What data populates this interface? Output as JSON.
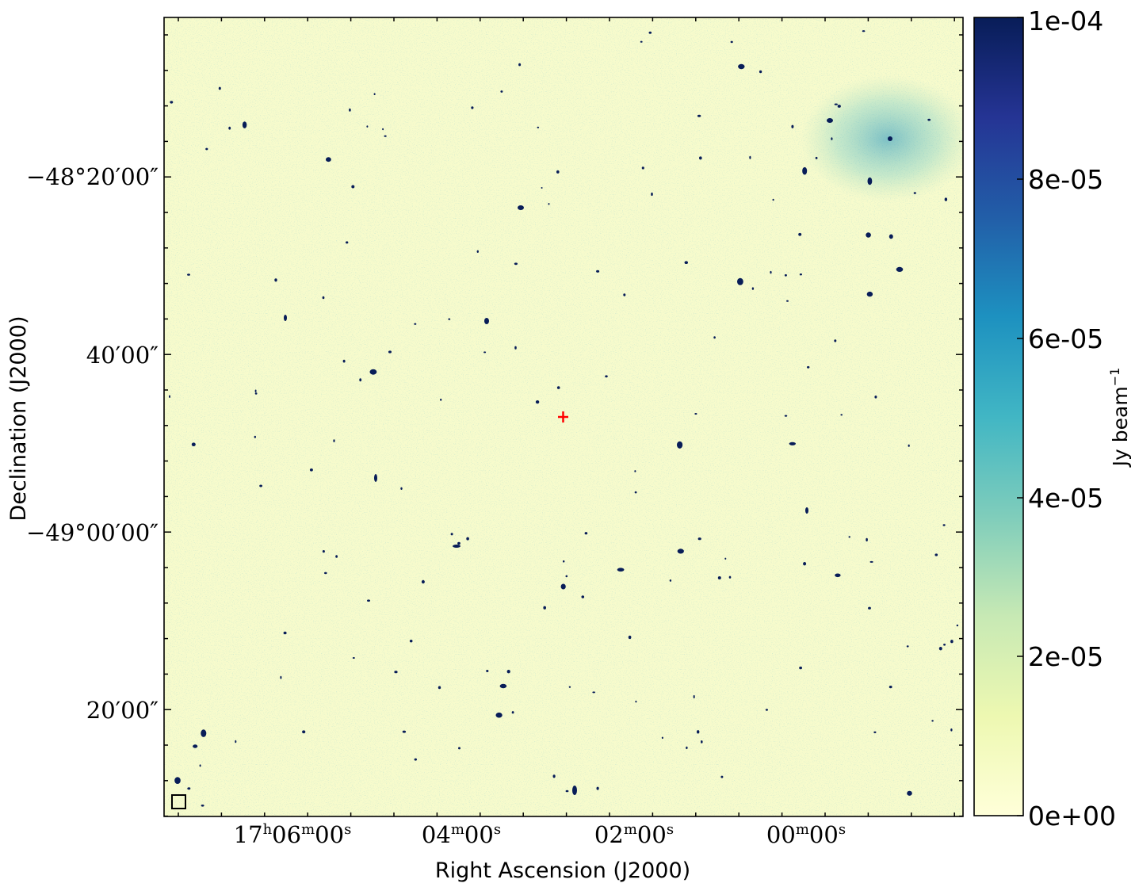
{
  "figure": {
    "x_axis_label": "Right Ascension (J2000)",
    "y_axis_label": "Declination (J2000)",
    "x_ticks": [
      {
        "h": "17",
        "hu": "h",
        "m": "06",
        "mu": "m",
        "s": "00",
        "su": "s"
      },
      {
        "h": "",
        "hu": "",
        "m": "04",
        "mu": "m",
        "s": "00",
        "su": "s"
      },
      {
        "h": "",
        "hu": "",
        "m": "02",
        "mu": "m",
        "s": "00",
        "su": "s"
      },
      {
        "h": "",
        "hu": "",
        "m": "00",
        "mu": "m",
        "s": "00",
        "su": "s"
      }
    ],
    "y_ticks": [
      "−48°20′00″",
      "40′00″",
      "−49°00′00″",
      "20′00″"
    ],
    "colorbar": {
      "label": "Jy beam",
      "label_exponent": "−1",
      "ticks": [
        "0e+00",
        "2e-05",
        "4e-05",
        "6e-05",
        "8e-05",
        "1e-04"
      ],
      "range": [
        0,
        0.0001
      ],
      "colormap": [
        "#ffffd9",
        "#edf8b1",
        "#c7e9b4",
        "#7fcdbb",
        "#41b6c4",
        "#1d91c0",
        "#225ea8",
        "#253494",
        "#081d58"
      ]
    },
    "colors": {
      "background_field": "#f7fbcc",
      "source": "#081d58",
      "target_marker": "#ff0000"
    },
    "markers": {
      "target": "cross-marker",
      "beam": "beam-box"
    }
  }
}
